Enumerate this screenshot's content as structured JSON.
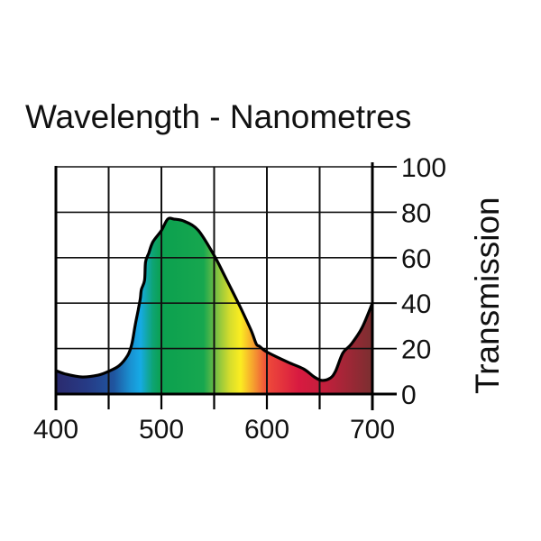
{
  "chart_data": {
    "type": "area",
    "title": "Wavelength - Nanometres",
    "xlabel": "Wavelength - Nanometres",
    "ylabel": "Transmission",
    "xlim": [
      400,
      700
    ],
    "ylim": [
      0,
      100
    ],
    "grid": true,
    "y_axis_position": "right",
    "x_ticks": [
      400,
      450,
      500,
      550,
      600,
      650,
      700
    ],
    "x_tick_labels": [
      "400",
      "500",
      "600",
      "700"
    ],
    "x_tick_label_values": [
      400,
      500,
      600,
      700
    ],
    "y_ticks": [
      0,
      20,
      40,
      60,
      80,
      100
    ],
    "y_tick_labels": [
      "0",
      "20",
      "40",
      "60",
      "80",
      "100"
    ],
    "series": [
      {
        "name": "Transmission",
        "x": [
          400,
          410,
          425,
          440,
          450,
          460,
          468,
          472,
          475,
          478,
          480,
          481,
          484,
          485,
          488,
          492,
          500,
          506,
          512,
          522,
          535,
          550,
          560,
          575,
          585,
          590,
          593,
          600,
          620,
          635,
          645,
          652,
          660,
          665,
          672,
          680,
          690,
          700
        ],
        "y": [
          10.3,
          8.7,
          7.5,
          8.3,
          10,
          12.5,
          17,
          22,
          30,
          37,
          42,
          46,
          50,
          58,
          62,
          67,
          72,
          77,
          77,
          76,
          72,
          61,
          52,
          38,
          28,
          22,
          21,
          18.5,
          14,
          11,
          7.5,
          6,
          7,
          10,
          18,
          22,
          29,
          40
        ]
      }
    ],
    "fill_gradient": [
      {
        "nm": 400,
        "color": "#2b2a6e"
      },
      {
        "nm": 430,
        "color": "#263b86"
      },
      {
        "nm": 455,
        "color": "#1f559f"
      },
      {
        "nm": 470,
        "color": "#1a8fd0"
      },
      {
        "nm": 480,
        "color": "#16aae5"
      },
      {
        "nm": 492,
        "color": "#0ea472"
      },
      {
        "nm": 500,
        "color": "#0ba04f"
      },
      {
        "nm": 540,
        "color": "#17a74f"
      },
      {
        "nm": 552,
        "color": "#7bc043"
      },
      {
        "nm": 565,
        "color": "#d6dd2c"
      },
      {
        "nm": 575,
        "color": "#fbed21"
      },
      {
        "nm": 588,
        "color": "#f59a30"
      },
      {
        "nm": 600,
        "color": "#ee4a3a"
      },
      {
        "nm": 630,
        "color": "#d81a40"
      },
      {
        "nm": 655,
        "color": "#c21f3c"
      },
      {
        "nm": 700,
        "color": "#7a2f30"
      }
    ],
    "colors": {
      "grid": "#111111",
      "outline": "#000000",
      "text": "#111111"
    }
  }
}
